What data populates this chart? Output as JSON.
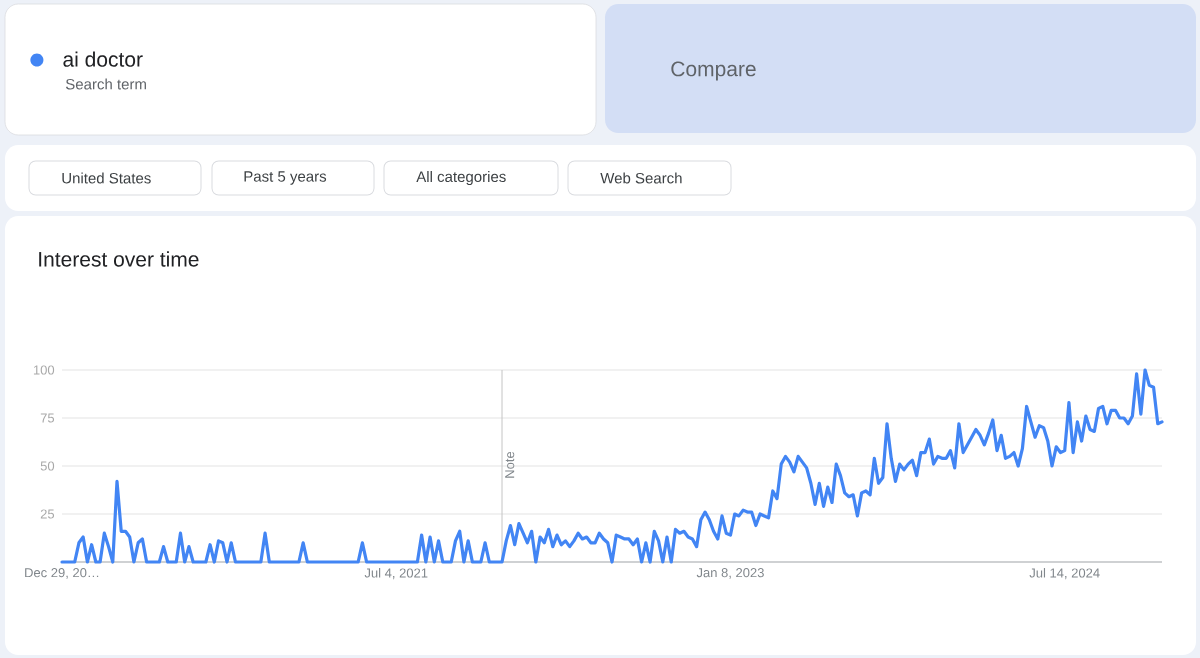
{
  "chart_data": {
    "type": "line",
    "title": "Interest over time",
    "x": [
      "2019-12-29",
      "2020-01-19",
      "2020-01-26",
      "2020-02-02",
      "2020-02-09",
      "2020-02-16",
      "2020-02-23",
      "2020-03-01",
      "2020-03-08",
      "2020-03-15",
      "2020-03-22",
      "2020-03-29",
      "2020-04-05",
      "2020-04-12",
      "2020-04-19",
      "2020-04-26",
      "2020-05-03",
      "2020-05-10",
      "2020-05-17",
      "2020-06-07",
      "2020-06-14",
      "2020-06-21",
      "2020-07-05",
      "2020-07-12",
      "2020-07-19",
      "2020-07-26",
      "2020-08-02",
      "2020-08-23",
      "2020-08-30",
      "2020-09-06",
      "2020-09-13",
      "2020-09-20",
      "2020-09-27",
      "2020-10-04",
      "2020-10-11",
      "2020-11-22",
      "2020-11-29",
      "2020-12-06",
      "2021-01-24",
      "2021-01-31",
      "2021-02-07",
      "2021-05-02",
      "2021-05-09",
      "2021-05-16",
      "2021-08-08",
      "2021-08-15",
      "2021-08-22",
      "2021-08-29",
      "2021-09-05",
      "2021-09-12",
      "2021-09-19",
      "2021-10-03",
      "2021-10-10",
      "2021-10-17",
      "2021-10-24",
      "2021-10-31",
      "2021-11-07",
      "2021-11-21",
      "2021-11-28",
      "2021-12-05",
      "2021-12-26",
      "2022-01-02",
      "2022-01-09",
      "2022-01-16",
      "2022-01-23",
      "2022-01-30",
      "2022-02-06",
      "2022-02-13",
      "2022-02-20",
      "2022-02-27",
      "2022-03-06",
      "2022-03-13",
      "2022-03-20",
      "2022-03-27",
      "2022-04-03",
      "2022-04-10",
      "2022-04-17",
      "2022-04-24",
      "2022-05-01",
      "2022-05-08",
      "2022-05-15",
      "2022-05-22",
      "2022-05-29",
      "2022-06-05",
      "2022-06-12",
      "2022-06-19",
      "2022-06-26",
      "2022-07-03",
      "2022-07-10",
      "2022-07-17",
      "2022-07-24",
      "2022-07-31",
      "2022-08-07",
      "2022-08-14",
      "2022-08-21",
      "2022-08-28",
      "2022-09-04",
      "2022-09-11",
      "2022-09-18",
      "2022-09-25",
      "2022-10-02",
      "2022-10-09",
      "2022-10-16",
      "2022-10-23",
      "2022-10-30",
      "2022-11-06",
      "2022-11-13",
      "2022-11-20",
      "2022-11-27",
      "2022-12-04",
      "2022-12-11",
      "2022-12-18",
      "2022-12-25",
      "2023-01-01",
      "2023-01-08",
      "2023-01-15",
      "2023-01-22",
      "2023-01-29",
      "2023-02-05",
      "2023-02-12",
      "2023-02-19",
      "2023-02-26",
      "2023-03-05",
      "2023-03-12",
      "2023-03-19",
      "2023-03-26",
      "2023-04-02",
      "2023-04-09",
      "2023-04-16",
      "2023-04-23",
      "2023-04-30",
      "2023-05-07",
      "2023-05-14",
      "2023-05-21",
      "2023-05-28",
      "2023-06-04",
      "2023-06-11",
      "2023-06-18",
      "2023-06-25",
      "2023-07-02",
      "2023-07-09",
      "2023-07-16",
      "2023-07-23",
      "2023-07-30",
      "2023-08-06",
      "2023-08-13",
      "2023-08-20",
      "2023-08-27",
      "2023-09-03",
      "2023-09-10",
      "2023-09-17",
      "2023-09-24",
      "2023-10-01",
      "2023-10-08",
      "2023-10-15",
      "2023-10-22",
      "2023-10-29",
      "2023-11-05",
      "2023-11-12",
      "2023-11-19",
      "2023-11-26",
      "2023-12-03",
      "2023-12-10",
      "2023-12-17",
      "2023-12-24",
      "2023-12-31",
      "2024-01-07",
      "2024-01-14",
      "2024-01-21",
      "2024-01-28",
      "2024-02-04",
      "2024-02-11",
      "2024-02-18",
      "2024-02-25",
      "2024-03-03",
      "2024-03-10",
      "2024-03-17",
      "2024-03-24",
      "2024-03-31",
      "2024-04-07",
      "2024-04-14",
      "2024-04-21",
      "2024-04-28",
      "2024-05-05",
      "2024-05-12",
      "2024-05-19",
      "2024-05-26",
      "2024-06-02",
      "2024-06-09",
      "2024-06-16",
      "2024-06-23",
      "2024-06-30",
      "2024-07-07",
      "2024-07-14",
      "2024-07-21",
      "2024-07-28",
      "2024-08-04",
      "2024-08-11",
      "2024-08-18",
      "2024-08-25",
      "2024-09-01",
      "2024-09-08",
      "2024-09-15",
      "2024-09-22",
      "2024-09-29",
      "2024-10-06",
      "2024-10-13",
      "2024-10-20",
      "2024-10-27",
      "2024-11-03",
      "2024-11-10",
      "2024-11-17",
      "2024-11-24",
      "2024-12-01",
      "2024-12-08",
      "2024-12-15",
      "2024-12-22"
    ],
    "series": [
      {
        "name": "ai doctor",
        "color": "#4285f4",
        "values": [
          0,
          0,
          10,
          13,
          0,
          9,
          0,
          0,
          15,
          8,
          0,
          42,
          16,
          16,
          13,
          0,
          10,
          12,
          0,
          0,
          8,
          0,
          0,
          15,
          0,
          8,
          0,
          0,
          9,
          0,
          11,
          10,
          0,
          10,
          0,
          0,
          15,
          0,
          0,
          10,
          0,
          0,
          10,
          0,
          0,
          14,
          0,
          13,
          0,
          11,
          0,
          0,
          11,
          16,
          0,
          11,
          0,
          0,
          10,
          0,
          0,
          11,
          19,
          9,
          20,
          15,
          10,
          16,
          0,
          13,
          10,
          17,
          8,
          14,
          9,
          11,
          8,
          11,
          15,
          12,
          13,
          10,
          10,
          15,
          12,
          10,
          0,
          14,
          13,
          12,
          12,
          9,
          12,
          0,
          10,
          0,
          16,
          11,
          0,
          13,
          0,
          17,
          15,
          16,
          13,
          12,
          8,
          22,
          26,
          22,
          16,
          12,
          24,
          15,
          14,
          25,
          24,
          27,
          26,
          26,
          19,
          25,
          24,
          23,
          37,
          33,
          51,
          55,
          52,
          47,
          55,
          52,
          49,
          41,
          30,
          41,
          29,
          39,
          31,
          51,
          45,
          36,
          34,
          35,
          24,
          36,
          37,
          35,
          54,
          41,
          44,
          72,
          54,
          42,
          51,
          48,
          51,
          53,
          45,
          57,
          57,
          64,
          51,
          55,
          54,
          54,
          58,
          49,
          72,
          57,
          61,
          65,
          69,
          66,
          61,
          67,
          74,
          58,
          66,
          54,
          55,
          57,
          50,
          59,
          81,
          73,
          65,
          71,
          70,
          63,
          50,
          60,
          57,
          58,
          83,
          57,
          73,
          63,
          76,
          69,
          68,
          80,
          81,
          72,
          79,
          79,
          75,
          75,
          72,
          76,
          98,
          77,
          100,
          92,
          91,
          72,
          73
        ]
      }
    ],
    "xlim": [
      "2019-12-29",
      "2024-12-22"
    ],
    "ylim": [
      0,
      100
    ],
    "xticks": [
      {
        "value": "2019-12-29",
        "label": "Dec 29, 20…"
      },
      {
        "value": "2021-07-04",
        "label": "Jul 4, 2021"
      },
      {
        "value": "2023-01-08",
        "label": "Jan 8, 2023"
      },
      {
        "value": "2024-07-14",
        "label": "Jul 14, 2024"
      }
    ],
    "yticks": [
      25,
      50,
      75,
      100
    ],
    "grid": "y",
    "legend": "top left",
    "marker": "none",
    "line_style": "solid",
    "ref_lines": [
      {
        "axis": "x",
        "value": "2021-12-26",
        "label": "Note",
        "color": "#c4c4c4"
      }
    ],
    "annotations": [
      "Search term",
      "Compare",
      "United States",
      "Past 5 years",
      "All categories",
      "Web Search"
    ]
  }
}
